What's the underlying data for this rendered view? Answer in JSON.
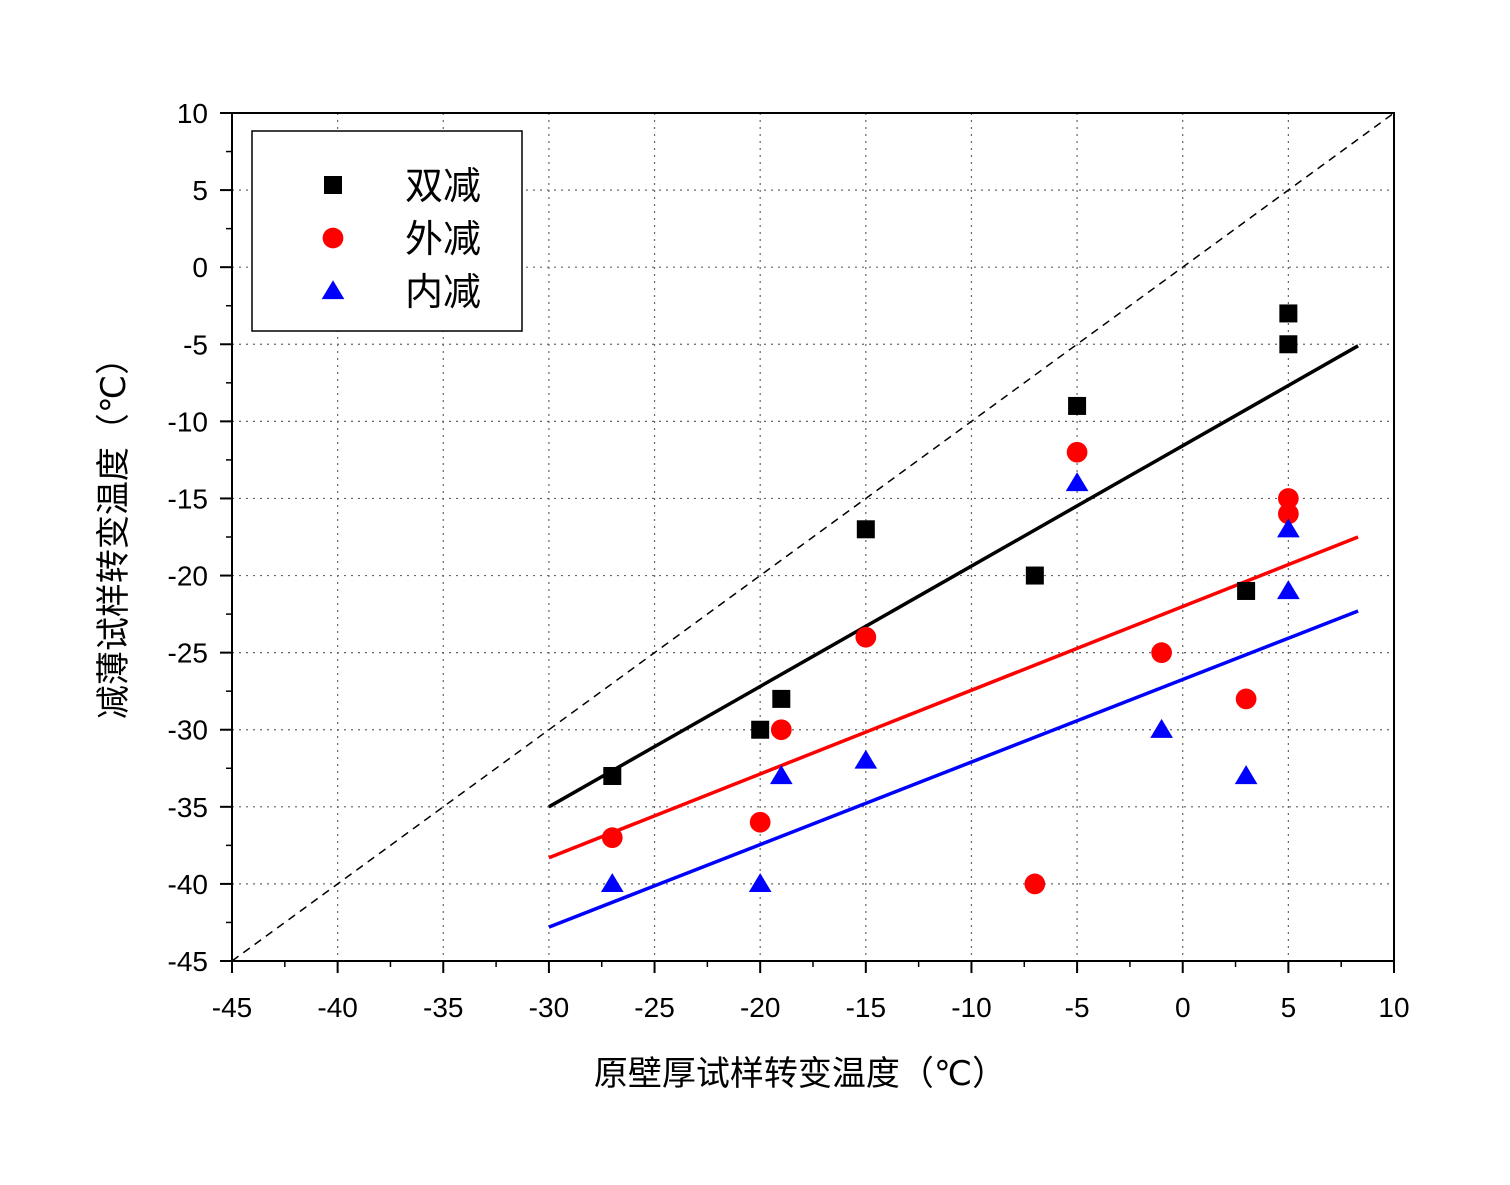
{
  "chart_data": {
    "type": "scatter",
    "title": "",
    "xlabel": "原壁厚试样转变温度（℃）",
    "ylabel": "减薄试样转变温度（℃）",
    "xlim": [
      -45,
      10
    ],
    "ylim": [
      -45,
      10
    ],
    "xticks": [
      "-45",
      "-40",
      "-35",
      "-30",
      "-25",
      "-20",
      "-15",
      "-10",
      "-5",
      "0",
      "5",
      "10"
    ],
    "yticks": [
      "10",
      "5",
      "0",
      "-5",
      "-10",
      "-15",
      "-20",
      "-25",
      "-30",
      "-35",
      "-40",
      "-45"
    ],
    "grid": true,
    "legend_position": "top-left",
    "diagonal_reference": {
      "from": [
        -45,
        -45
      ],
      "to": [
        10,
        10
      ],
      "style": "dashed",
      "color": "#000000"
    },
    "series": [
      {
        "name": "双减",
        "marker": "square",
        "color": "#000000",
        "points": [
          [
            -27,
            -33
          ],
          [
            -20,
            -30
          ],
          [
            -19,
            -28
          ],
          [
            -15,
            -17
          ],
          [
            -7,
            -20
          ],
          [
            -5,
            -9
          ],
          [
            3,
            -21
          ],
          [
            5,
            -3
          ],
          [
            5,
            -5
          ]
        ],
        "fit_line": {
          "from": [
            -30,
            -35
          ],
          "to": [
            8.3,
            -5.1
          ]
        }
      },
      {
        "name": "外减",
        "marker": "circle",
        "color": "#ff0000",
        "points": [
          [
            -27,
            -37
          ],
          [
            -20,
            -36
          ],
          [
            -19,
            -30
          ],
          [
            -15,
            -24
          ],
          [
            -7,
            -40
          ],
          [
            -5,
            -12
          ],
          [
            -1,
            -25
          ],
          [
            3,
            -28
          ],
          [
            5,
            -15
          ],
          [
            5,
            -16
          ]
        ],
        "fit_line": {
          "from": [
            -30,
            -38.3
          ],
          "to": [
            8.3,
            -17.5
          ]
        }
      },
      {
        "name": "内减",
        "marker": "triangle",
        "color": "#0000ff",
        "points": [
          [
            -27,
            -40
          ],
          [
            -20,
            -40
          ],
          [
            -19,
            -33
          ],
          [
            -15,
            -32
          ],
          [
            -5,
            -14
          ],
          [
            -1,
            -30
          ],
          [
            3,
            -33
          ],
          [
            5,
            -17
          ],
          [
            5,
            -21
          ]
        ],
        "fit_line": {
          "from": [
            -30,
            -42.8
          ],
          "to": [
            8.3,
            -22.3
          ]
        }
      }
    ]
  }
}
